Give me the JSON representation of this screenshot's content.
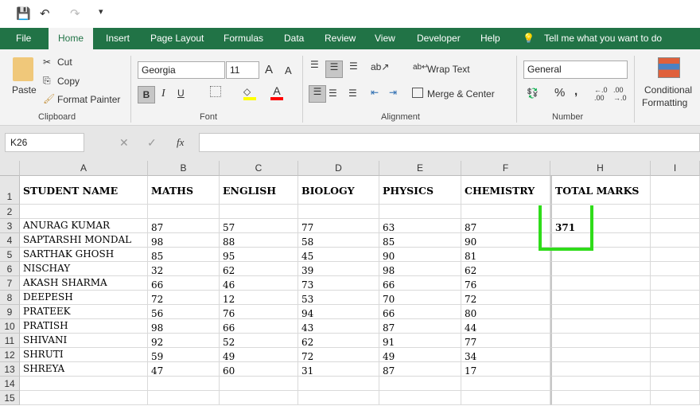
{
  "qat": {
    "save": "💾",
    "undo": "↶",
    "redo": "↷",
    "customize": "▾"
  },
  "tabs": [
    "File",
    "Home",
    "Insert",
    "Page Layout",
    "Formulas",
    "Data",
    "Review",
    "View",
    "Developer",
    "Help"
  ],
  "tell_me": "Tell me what you want to do",
  "ribbon": {
    "clipboard": {
      "paste": "Paste",
      "cut": "Cut",
      "copy": "Copy",
      "format_painter": "Format Painter",
      "label": "Clipboard"
    },
    "font": {
      "name": "Georgia",
      "size": "11",
      "bold": "B",
      "italic": "I",
      "underline": "U",
      "label": "Font"
    },
    "alignment": {
      "wrap": "Wrap Text",
      "merge": "Merge & Center",
      "label": "Alignment"
    },
    "number": {
      "format": "General",
      "percent": "%",
      "comma": ",",
      "label": "Number"
    },
    "styles": {
      "conditional": "Conditional",
      "formatting": "Formatting"
    }
  },
  "formula_bar": {
    "name_box": "K26",
    "fx": "fx",
    "value": ""
  },
  "columns": [
    "A",
    "B",
    "C",
    "D",
    "E",
    "F",
    "H",
    "I"
  ],
  "headers": [
    "STUDENT NAME",
    "MATHS",
    "ENGLISH",
    "BIOLOGY",
    "PHYSICS",
    "CHEMISTRY",
    "TOTAL MARKS"
  ],
  "rows": [
    [
      "ANURAG KUMAR",
      "87",
      "57",
      "77",
      "63",
      "87",
      "371"
    ],
    [
      "SAPTARSHI MONDAL",
      "98",
      "88",
      "58",
      "85",
      "90",
      ""
    ],
    [
      "SARTHAK GHOSH",
      "85",
      "95",
      "45",
      "90",
      "81",
      ""
    ],
    [
      "NISCHAY",
      "32",
      "62",
      "39",
      "98",
      "62",
      ""
    ],
    [
      "AKASH SHARMA",
      "66",
      "46",
      "73",
      "66",
      "76",
      ""
    ],
    [
      "DEEPESH",
      "72",
      "12",
      "53",
      "70",
      "72",
      ""
    ],
    [
      "PRATEEK",
      "56",
      "76",
      "94",
      "66",
      "80",
      ""
    ],
    [
      "PRATISH",
      "98",
      "66",
      "43",
      "87",
      "44",
      ""
    ],
    [
      "SHIVANI",
      "92",
      "52",
      "62",
      "91",
      "77",
      ""
    ],
    [
      "SHRUTI",
      "59",
      "49",
      "72",
      "49",
      "34",
      ""
    ],
    [
      "SHREYA",
      "47",
      "60",
      "31",
      "87",
      "17",
      ""
    ]
  ],
  "row_numbers": [
    "1",
    "2",
    "3",
    "4",
    "5",
    "6",
    "7",
    "8",
    "9",
    "10",
    "11",
    "12",
    "13",
    "14",
    "15"
  ],
  "colors": {
    "accent": "#217346",
    "annotation": "#2fdc1a"
  }
}
